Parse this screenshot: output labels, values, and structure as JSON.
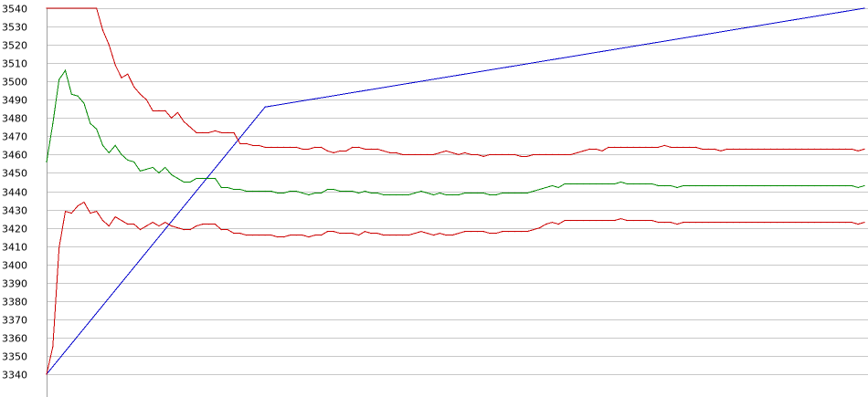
{
  "chart_data": {
    "type": "line",
    "title": "",
    "xlabel": "",
    "ylabel": "",
    "ylim": [
      3340,
      3540
    ],
    "y_ticks": [
      "3540",
      "3530",
      "3520",
      "3510",
      "3500",
      "3490",
      "3480",
      "3470",
      "3460",
      "3450",
      "3440",
      "3430",
      "3420",
      "3410",
      "3400",
      "3390",
      "3380",
      "3370",
      "3360",
      "3350",
      "3340"
    ],
    "grid": true,
    "legend": "none",
    "x_count": 131,
    "series": [
      {
        "color": "#0000cc",
        "x": [
          0,
          35,
          131
        ],
        "values": [
          3340,
          3486,
          3540
        ]
      },
      {
        "color": "#cc0000",
        "x": [
          0,
          8,
          9,
          10,
          11,
          12,
          13,
          14,
          15,
          16,
          17,
          18,
          19,
          20,
          21,
          22,
          23,
          24,
          25,
          26,
          27,
          28,
          29,
          30,
          31,
          32,
          33,
          34,
          35,
          36,
          37,
          38,
          39,
          40,
          41,
          42,
          43,
          44,
          45,
          46,
          47,
          48,
          49,
          50,
          51,
          52,
          53,
          54,
          55,
          56,
          57,
          58,
          59,
          60,
          61,
          62,
          63,
          64,
          65,
          66,
          67,
          68,
          69,
          70,
          71,
          72,
          73,
          74,
          75,
          76,
          77,
          78,
          79,
          80,
          81,
          82,
          83,
          84,
          85,
          86,
          87,
          88,
          89,
          90,
          91,
          92,
          93,
          94,
          95,
          96,
          97,
          98,
          99,
          100,
          101,
          102,
          103,
          104,
          105,
          106,
          107,
          108,
          109,
          110,
          111,
          112,
          113,
          114,
          115,
          116,
          117,
          118,
          119,
          120,
          121,
          122,
          123,
          124,
          125,
          126,
          127,
          128,
          129,
          130,
          131
        ],
        "values": [
          3540,
          3540,
          3528,
          3520,
          3509,
          3502,
          3504,
          3497,
          3493,
          3490,
          3484,
          3484,
          3484,
          3480,
          3483,
          3478,
          3475,
          3472,
          3472,
          3472,
          3473,
          3472,
          3472,
          3472,
          3466,
          3466,
          3465,
          3465,
          3464,
          3464,
          3464,
          3464,
          3464,
          3464,
          3463,
          3463,
          3464,
          3464,
          3462,
          3461,
          3462,
          3462,
          3464,
          3464,
          3463,
          3463,
          3463,
          3462,
          3461,
          3461,
          3460,
          3460,
          3460,
          3460,
          3460,
          3460,
          3461,
          3462,
          3461,
          3460,
          3461,
          3460,
          3460,
          3459,
          3460,
          3460,
          3460,
          3460,
          3460,
          3459,
          3459,
          3460,
          3460,
          3460,
          3460,
          3460,
          3460,
          3460,
          3461,
          3462,
          3463,
          3463,
          3462,
          3464,
          3464,
          3464,
          3464,
          3464,
          3464,
          3464,
          3464,
          3464,
          3465,
          3464,
          3464,
          3464,
          3464,
          3464,
          3463,
          3463,
          3463,
          3462,
          3463,
          3463,
          3463,
          3463,
          3463,
          3463,
          3463,
          3463,
          3463,
          3463,
          3463,
          3463,
          3463,
          3463,
          3463,
          3463,
          3463,
          3463,
          3463,
          3463,
          3463,
          3462,
          3463
        ]
      },
      {
        "color": "#008800",
        "x": [
          0,
          1,
          2,
          3,
          4,
          5,
          6,
          7,
          8,
          9,
          10,
          11,
          12,
          13,
          14,
          15,
          16,
          17,
          18,
          19,
          20,
          21,
          22,
          23,
          24,
          25,
          26,
          27,
          28,
          29,
          30,
          31,
          32,
          33,
          34,
          35,
          36,
          37,
          38,
          39,
          40,
          41,
          42,
          43,
          44,
          45,
          46,
          47,
          48,
          49,
          50,
          51,
          52,
          53,
          54,
          55,
          56,
          57,
          58,
          59,
          60,
          61,
          62,
          63,
          64,
          65,
          66,
          67,
          68,
          69,
          70,
          71,
          72,
          73,
          74,
          75,
          76,
          77,
          78,
          79,
          80,
          81,
          82,
          83,
          84,
          85,
          86,
          87,
          88,
          89,
          90,
          91,
          92,
          93,
          94,
          95,
          96,
          97,
          98,
          99,
          100,
          101,
          102,
          103,
          104,
          105,
          106,
          107,
          108,
          109,
          110,
          111,
          112,
          113,
          114,
          115,
          116,
          117,
          118,
          119,
          120,
          121,
          122,
          123,
          124,
          125,
          126,
          127,
          128,
          129,
          130,
          131
        ],
        "values": [
          3456,
          3477,
          3501,
          3506,
          3493,
          3492,
          3488,
          3477,
          3474,
          3465,
          3461,
          3465,
          3460,
          3457,
          3456,
          3451,
          3452,
          3453,
          3450,
          3453,
          3449,
          3447,
          3445,
          3445,
          3447,
          3447,
          3447,
          3447,
          3442,
          3442,
          3441,
          3441,
          3440,
          3440,
          3440,
          3440,
          3440,
          3439,
          3439,
          3440,
          3440,
          3439,
          3438,
          3439,
          3439,
          3441,
          3441,
          3440,
          3440,
          3440,
          3439,
          3440,
          3439,
          3439,
          3438,
          3438,
          3438,
          3438,
          3438,
          3439,
          3440,
          3439,
          3438,
          3439,
          3438,
          3438,
          3438,
          3439,
          3439,
          3439,
          3439,
          3438,
          3438,
          3439,
          3439,
          3439,
          3439,
          3439,
          3440,
          3441,
          3442,
          3443,
          3442,
          3444,
          3444,
          3444,
          3444,
          3444,
          3444,
          3444,
          3444,
          3444,
          3445,
          3444,
          3444,
          3444,
          3444,
          3444,
          3443,
          3443,
          3443,
          3442,
          3443,
          3443,
          3443,
          3443,
          3443,
          3443,
          3443,
          3443,
          3443,
          3443,
          3443,
          3443,
          3443,
          3443,
          3443,
          3443,
          3443,
          3443,
          3443,
          3443,
          3443,
          3443,
          3443,
          3443,
          3443,
          3443,
          3443,
          3443,
          3442,
          3443
        ]
      },
      {
        "color": "#cc0000",
        "x": [
          0,
          1,
          2,
          3,
          4,
          5,
          6,
          7,
          8,
          9,
          10,
          11,
          12,
          13,
          14,
          15,
          16,
          17,
          18,
          19,
          20,
          21,
          22,
          23,
          24,
          25,
          26,
          27,
          28,
          29,
          30,
          31,
          32,
          33,
          34,
          35,
          36,
          37,
          38,
          39,
          40,
          41,
          42,
          43,
          44,
          45,
          46,
          47,
          48,
          49,
          50,
          51,
          52,
          53,
          54,
          55,
          56,
          57,
          58,
          59,
          60,
          61,
          62,
          63,
          64,
          65,
          66,
          67,
          68,
          69,
          70,
          71,
          72,
          73,
          74,
          75,
          76,
          77,
          78,
          79,
          80,
          81,
          82,
          83,
          84,
          85,
          86,
          87,
          88,
          89,
          90,
          91,
          92,
          93,
          94,
          95,
          96,
          97,
          98,
          99,
          100,
          101,
          102,
          103,
          104,
          105,
          106,
          107,
          108,
          109,
          110,
          111,
          112,
          113,
          114,
          115,
          116,
          117,
          118,
          119,
          120,
          121,
          122,
          123,
          124,
          125,
          126,
          127,
          128,
          129,
          130,
          131
        ],
        "values": [
          3340,
          3355,
          3409,
          3429,
          3428,
          3432,
          3434,
          3428,
          3429,
          3424,
          3421,
          3426,
          3424,
          3422,
          3422,
          3419,
          3421,
          3423,
          3421,
          3423,
          3421,
          3420,
          3419,
          3419,
          3421,
          3422,
          3422,
          3422,
          3419,
          3419,
          3417,
          3417,
          3416,
          3416,
          3416,
          3416,
          3416,
          3415,
          3415,
          3416,
          3416,
          3416,
          3415,
          3416,
          3416,
          3418,
          3418,
          3417,
          3417,
          3417,
          3416,
          3418,
          3417,
          3417,
          3416,
          3416,
          3416,
          3416,
          3416,
          3417,
          3418,
          3417,
          3416,
          3417,
          3416,
          3416,
          3417,
          3418,
          3418,
          3418,
          3418,
          3417,
          3417,
          3418,
          3418,
          3418,
          3418,
          3418,
          3419,
          3420,
          3422,
          3423,
          3422,
          3424,
          3424,
          3424,
          3424,
          3424,
          3424,
          3424,
          3424,
          3424,
          3425,
          3424,
          3424,
          3424,
          3424,
          3424,
          3423,
          3423,
          3423,
          3422,
          3423,
          3423,
          3423,
          3423,
          3423,
          3423,
          3423,
          3423,
          3423,
          3423,
          3423,
          3423,
          3423,
          3423,
          3423,
          3423,
          3423,
          3423,
          3423,
          3423,
          3423,
          3423,
          3423,
          3423,
          3423,
          3423,
          3423,
          3423,
          3422,
          3423
        ]
      }
    ]
  }
}
